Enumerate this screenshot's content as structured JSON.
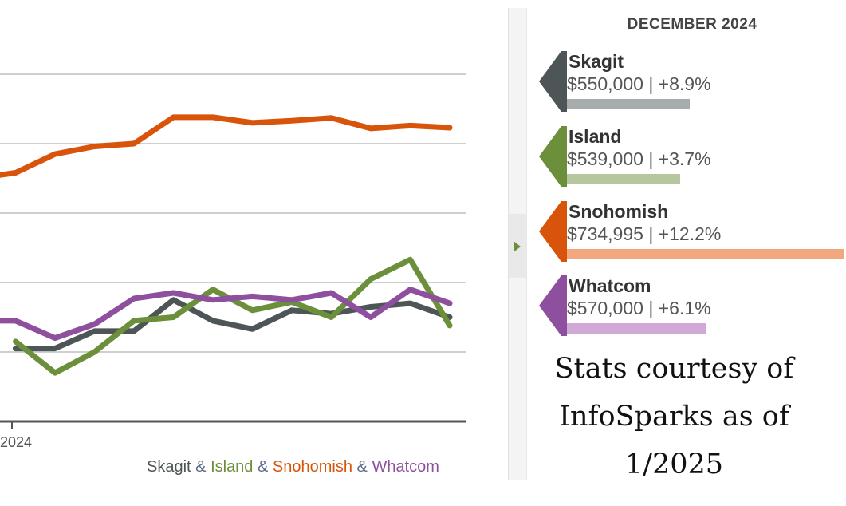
{
  "chart_data": {
    "type": "line",
    "x_tick_labels": [
      "2024"
    ],
    "ylim": [
      0,
      5
    ],
    "grid": true,
    "series": [
      {
        "name": "Snohomish",
        "color": "#d9540b",
        "values": [
          3.5,
          3.58,
          3.85,
          3.96,
          4.0,
          4.38,
          4.38,
          4.3,
          4.33,
          4.37,
          4.22,
          4.26,
          4.23
        ]
      },
      {
        "name": "Skagit",
        "color": "#4d5556",
        "values": [
          1.05,
          1.05,
          1.3,
          1.3,
          1.75,
          1.45,
          1.33,
          1.6,
          1.55,
          1.65,
          1.7,
          1.5
        ]
      },
      {
        "name": "Island",
        "color": "#6b8f3a",
        "values": [
          1.15,
          0.7,
          1.0,
          1.45,
          1.5,
          1.9,
          1.6,
          1.72,
          1.5,
          2.05,
          2.33,
          1.38
        ]
      },
      {
        "name": "Whatcom",
        "color": "#8e4f9e",
        "values": [
          1.45,
          1.45,
          1.2,
          1.4,
          1.77,
          1.85,
          1.75,
          1.8,
          1.75,
          1.85,
          1.5,
          1.9,
          1.7
        ]
      }
    ],
    "legend": [
      {
        "label": "Skagit",
        "color": "#4d5556"
      },
      {
        "label": "Island",
        "color": "#6b8f3a"
      },
      {
        "label": "Snohomish",
        "color": "#d9540b"
      },
      {
        "label": "Whatcom",
        "color": "#8e4f9e"
      }
    ],
    "legend_separator": "&"
  },
  "panel": {
    "title": "DECEMBER 2024",
    "counties": [
      {
        "name": "Skagit",
        "stat": "$550,000 | +8.9%",
        "pointer_color": "#4d5556",
        "bar_color": "#a6abab",
        "bar_fraction": 0.444
      },
      {
        "name": "Island",
        "stat": "$539,000 | +3.7%",
        "pointer_color": "#6b8f3a",
        "bar_color": "#b5c79e",
        "bar_fraction": 0.41
      },
      {
        "name": "Snohomish",
        "stat": "$734,995 | +12.2%",
        "pointer_color": "#d9540b",
        "bar_color": "#f0a87c",
        "bar_fraction": 1.0
      },
      {
        "name": "Whatcom",
        "stat": "$570,000 | +6.1%",
        "pointer_color": "#8e4f9e",
        "bar_color": "#d0a9d6",
        "bar_fraction": 0.5
      }
    ]
  },
  "courtesy": {
    "line1": "Stats courtesy of",
    "line2": "InfoSparks as of",
    "line3": "1/2025"
  }
}
